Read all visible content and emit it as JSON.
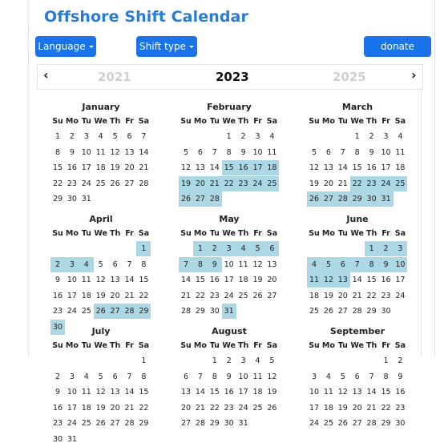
{
  "app": {
    "title": "Offshore Shift Calendar"
  },
  "toolbar": {
    "language_label": "Language",
    "shift_type_label": "Shift type",
    "donate_label": "donate"
  },
  "year_nav": {
    "prev_glyph": "‹",
    "next_glyph": "›",
    "prev_year": "2021",
    "current_year": "2023",
    "next_year": "2025"
  },
  "weekdays": [
    "Su",
    "Mo",
    "Tu",
    "We",
    "Th",
    "Fr",
    "Sa"
  ],
  "colors": {
    "accent": "#1a73e8",
    "title": "#2b7bd6",
    "shift_bg": "#acd8e6",
    "muted_year": "#d0d0d0"
  },
  "months": [
    {
      "name": "January",
      "start_weekday": 0,
      "days": 31,
      "shift_days": []
    },
    {
      "name": "February",
      "start_weekday": 3,
      "days": 28,
      "shift_days": [
        15,
        16,
        17,
        18,
        19,
        20,
        21,
        22,
        23,
        24,
        25,
        26,
        27,
        28
      ]
    },
    {
      "name": "March",
      "start_weekday": 3,
      "days": 31,
      "shift_days": [
        22,
        23,
        24,
        25,
        26,
        27,
        28,
        29,
        30,
        31
      ]
    },
    {
      "name": "April",
      "start_weekday": 6,
      "days": 30,
      "shift_days": [
        1,
        2,
        3,
        4,
        26,
        27,
        28,
        29,
        30
      ]
    },
    {
      "name": "May",
      "start_weekday": 1,
      "days": 31,
      "shift_days": [
        1,
        2,
        3,
        4,
        5,
        6,
        7,
        8,
        9,
        31
      ]
    },
    {
      "name": "June",
      "start_weekday": 4,
      "days": 30,
      "shift_days": [
        1,
        2,
        3,
        4,
        5,
        6,
        7,
        8,
        9,
        10,
        11,
        12,
        13
      ]
    },
    {
      "name": "July",
      "start_weekday": 6,
      "days": 31,
      "shift_days": []
    },
    {
      "name": "August",
      "start_weekday": 2,
      "days": 31,
      "shift_days": []
    },
    {
      "name": "September",
      "start_weekday": 5,
      "days": 30,
      "shift_days": []
    }
  ]
}
